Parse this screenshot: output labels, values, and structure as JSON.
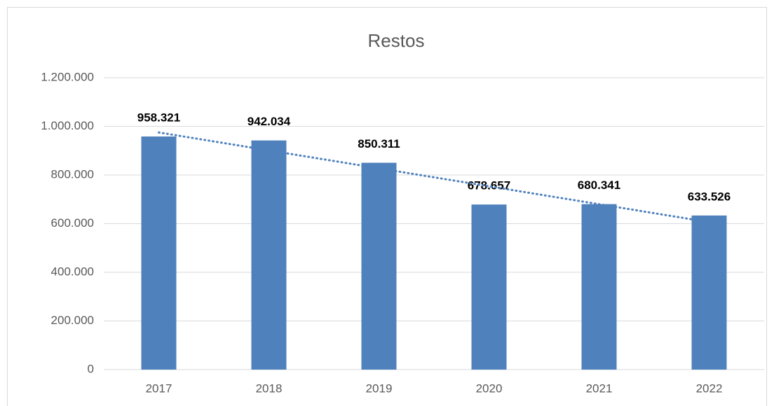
{
  "chart_data": {
    "type": "bar",
    "title": "Restos",
    "categories": [
      "2017",
      "2018",
      "2019",
      "2020",
      "2021",
      "2022"
    ],
    "values": [
      958321,
      942034,
      850311,
      678657,
      680341,
      633526
    ],
    "value_labels": [
      "958.321",
      "942.034",
      "850.311",
      "678.657",
      "680.341",
      "633.526"
    ],
    "color": "#4f81bd",
    "ylim": [
      0,
      1200000
    ],
    "yticks": [
      0,
      {
        "value": 200000,
        "label": "200.000"
      },
      {
        "value": 400000,
        "label": "400.000"
      },
      {
        "value": 600000,
        "label": "600.000"
      },
      {
        "value": 800000,
        "label": "800.000"
      },
      {
        "value": 1000000,
        "label": "1.000.000"
      },
      {
        "value": 1200000,
        "label": "1.200.000"
      }
    ],
    "grid": true,
    "trendline": {
      "type": "linear",
      "color": "#4f81bd",
      "style": "dotted"
    }
  }
}
